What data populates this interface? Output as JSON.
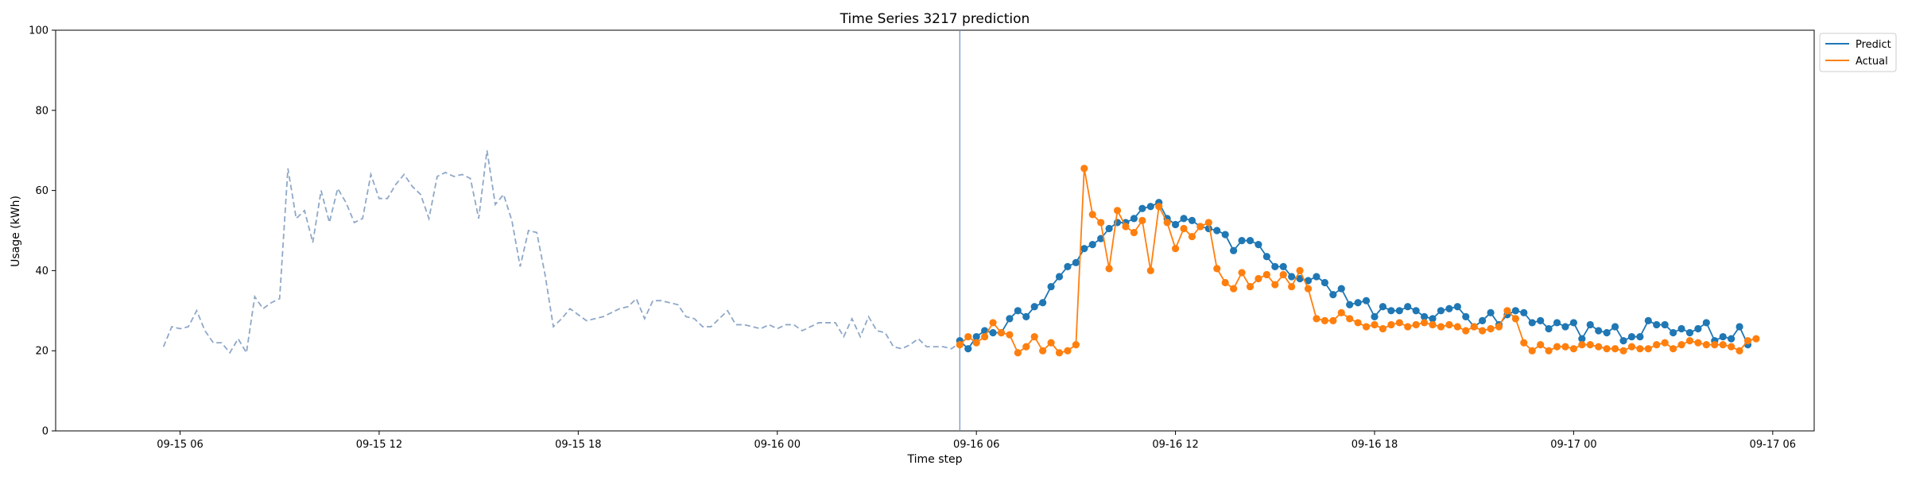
{
  "chart_data": {
    "type": "line",
    "title": "Time Series 3217 prediction",
    "xlabel": "Time step",
    "ylabel": "Usage (kWh)",
    "ylim": [
      0,
      100
    ],
    "yticks": [
      "0",
      "20",
      "40",
      "60",
      "80",
      "100"
    ],
    "xlim": [
      "2024-09-15 02:15",
      "2024-09-17 07:15"
    ],
    "xticks": [
      {
        "label": "09-15 06",
        "t": "2024-09-15 06:00"
      },
      {
        "label": "09-15 12",
        "t": "2024-09-15 12:00"
      },
      {
        "label": "09-15 18",
        "t": "2024-09-15 18:00"
      },
      {
        "label": "09-16 00",
        "t": "2024-09-16 00:00"
      },
      {
        "label": "09-16 06",
        "t": "2024-09-16 06:00"
      },
      {
        "label": "09-16 12",
        "t": "2024-09-16 12:00"
      },
      {
        "label": "09-16 18",
        "t": "2024-09-16 18:00"
      },
      {
        "label": "09-17 00",
        "t": "2024-09-17 00:00"
      },
      {
        "label": "09-17 06",
        "t": "2024-09-17 06:00"
      }
    ],
    "forecast_start": "2024-09-16 05:30",
    "interval_minutes": 15,
    "grid": false,
    "legend_position": "top-right, outside plot",
    "history": {
      "start": "2024-09-15 05:30",
      "color": "#8fa8c8",
      "style": "dashed",
      "values": [
        21,
        26,
        25.5,
        26,
        30,
        25,
        22,
        22,
        19.5,
        23,
        19.5,
        33.5,
        30.5,
        32,
        33,
        65.5,
        53,
        55,
        47,
        60,
        52,
        60.5,
        57,
        52,
        53,
        64,
        58,
        58,
        61.5,
        64,
        61,
        59,
        53,
        63.5,
        64.5,
        63.5,
        64,
        63,
        53,
        70,
        56.5,
        59,
        52.5,
        41,
        50,
        49.5,
        39,
        26,
        28,
        30.5,
        29,
        27.5,
        28,
        28.5,
        29.5,
        30.5,
        31,
        33,
        28,
        32.5,
        32.5,
        32,
        31.5,
        28.5,
        28,
        26,
        26,
        28,
        30,
        26.5,
        26.5,
        26,
        25.5,
        26.5,
        25.5,
        26.5,
        26.5,
        25,
        26,
        27,
        27,
        27,
        23.5,
        28,
        23.5,
        28.5,
        25,
        24.5,
        21,
        20.5,
        21.5,
        23,
        21,
        21,
        21,
        20.5,
        22
      ]
    },
    "series": [
      {
        "name": "Predict",
        "color": "#1f77b4",
        "start": "2024-09-16 05:30",
        "values": [
          22.5,
          20.5,
          23.5,
          25,
          24.5,
          24.5,
          28,
          30,
          28.5,
          31,
          32,
          36,
          38.5,
          41,
          42,
          45.5,
          46.5,
          48,
          50.5,
          52,
          52,
          53,
          55.5,
          56,
          57,
          53,
          51.5,
          53,
          52.5,
          51,
          50.5,
          50,
          49,
          45,
          47.5,
          47.5,
          46.5,
          43.5,
          41,
          41,
          38.5,
          38,
          37.5,
          38.5,
          37,
          34,
          35.5,
          31.5,
          32,
          32.5,
          28.5,
          31,
          30,
          30,
          31,
          30,
          28.5,
          28,
          30,
          30.5,
          31,
          28.5,
          26,
          27.5,
          29.5,
          26.5,
          29,
          30,
          29.5,
          27,
          27.5,
          25.5,
          27,
          26,
          27,
          23,
          26.5,
          25,
          24.5,
          26,
          22.5,
          23.5,
          23.5,
          27.5,
          26.5,
          26.5,
          24.5,
          25.5,
          24.5,
          25.5,
          27,
          22.5,
          23.5,
          23,
          26,
          21.5
        ]
      },
      {
        "name": "Actual",
        "color": "#ff7f0e",
        "start": "2024-09-16 05:30",
        "values": [
          21.5,
          23.5,
          22,
          23.5,
          27,
          24.5,
          24,
          19.5,
          21,
          23.5,
          20,
          22,
          19.5,
          20,
          21.5,
          65.5,
          54,
          52,
          40.5,
          55,
          51,
          49.5,
          52.5,
          40,
          56,
          52,
          45.5,
          50.5,
          48.5,
          51,
          52,
          40.5,
          37,
          35.5,
          39.5,
          36,
          38,
          39,
          36.5,
          39,
          36,
          40,
          35.5,
          28,
          27.5,
          27.5,
          29.5,
          28,
          27,
          26,
          26.5,
          25.5,
          26.5,
          27,
          26,
          26.5,
          27,
          26.5,
          26,
          26.5,
          26,
          25,
          26,
          25,
          25.5,
          26,
          30,
          28,
          22,
          20,
          21.5,
          20,
          21,
          21,
          20.5,
          21.5,
          21.5,
          21,
          20.5,
          20.5,
          20,
          21,
          20.5,
          20.5,
          21.5,
          22,
          20.5,
          21.5,
          22.5,
          22,
          21.5,
          21.5,
          21.5,
          21,
          20,
          22.5,
          23
        ]
      }
    ]
  }
}
